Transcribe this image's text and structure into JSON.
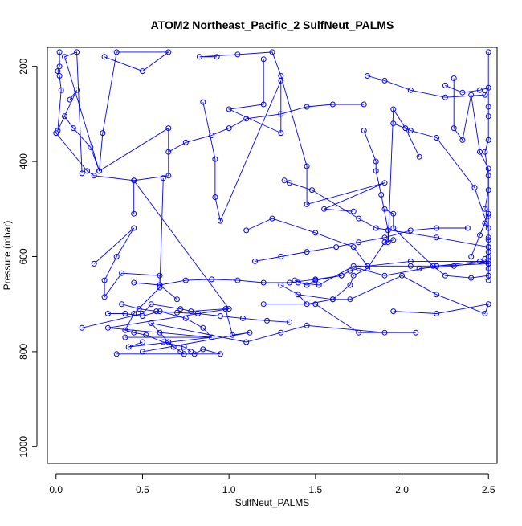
{
  "chart_data": {
    "type": "line",
    "title": "ATOM2 Northeast_Pacific_2 SulfNeut_PALMS",
    "xlabel": "SulfNeut_PALMS",
    "ylabel": "Pressure (mbar)",
    "xlim": [
      -0.05,
      2.55
    ],
    "ylim": [
      1035,
      160
    ],
    "y_reversed": true,
    "x_ticks": [
      0.0,
      0.5,
      1.0,
      1.5,
      2.0,
      2.5
    ],
    "x_tick_labels": [
      "0.0",
      "0.5",
      "1.0",
      "1.5",
      "2.0",
      "2.5"
    ],
    "y_ticks": [
      200,
      400,
      600,
      800,
      1000
    ],
    "y_tick_labels": [
      "200",
      "400",
      "600",
      "800",
      "1000"
    ],
    "grid": false,
    "legend": "none",
    "marker": "open-circle",
    "color": "#0000ff",
    "series": [
      {
        "points": [
          [
            0.02,
            170
          ],
          [
            0.02,
            200
          ],
          [
            0.01,
            210
          ],
          [
            0.02,
            220
          ],
          [
            0.03,
            250
          ],
          [
            0.01,
            335
          ],
          [
            0.12,
            250
          ],
          [
            0.08,
            270
          ]
        ]
      },
      {
        "points": [
          [
            0.05,
            305
          ],
          [
            0.1,
            330
          ],
          [
            0.2,
            370
          ],
          [
            0.25,
            420
          ],
          [
            0.05,
            180
          ],
          [
            0.12,
            170
          ],
          [
            0.15,
            425
          ]
        ]
      },
      {
        "points": [
          [
            0.28,
            180
          ],
          [
            0.5,
            210
          ],
          [
            0.65,
            170
          ],
          [
            0.35,
            170
          ],
          [
            0.27,
            340
          ],
          [
            0.25,
            420
          ],
          [
            0.65,
            330
          ],
          [
            0.65,
            430
          ],
          [
            0.45,
            440
          ],
          [
            0.45,
            510
          ]
        ]
      },
      {
        "points": [
          [
            0.0,
            340
          ],
          [
            0.18,
            420
          ],
          [
            0.22,
            430
          ],
          [
            0.45,
            440
          ],
          [
            1.0,
            710
          ],
          [
            0.3,
            750
          ],
          [
            0.9,
            770
          ],
          [
            0.4,
            770
          ]
        ]
      },
      {
        "points": [
          [
            0.85,
            275
          ],
          [
            0.92,
            395
          ],
          [
            0.92,
            475
          ],
          [
            0.95,
            525
          ],
          [
            1.3,
            230
          ],
          [
            1.3,
            340
          ],
          [
            1.0,
            290
          ],
          [
            1.2,
            280
          ],
          [
            1.2,
            185
          ]
        ]
      },
      {
        "points": [
          [
            0.93,
            180
          ],
          [
            0.83,
            180
          ],
          [
            1.05,
            175
          ],
          [
            1.25,
            170
          ],
          [
            1.3,
            220
          ],
          [
            1.45,
            410
          ],
          [
            1.45,
            490
          ],
          [
            1.9,
            445
          ],
          [
            1.55,
            500
          ],
          [
            1.72,
            505
          ]
        ]
      },
      {
        "points": [
          [
            0.22,
            615
          ],
          [
            0.45,
            540
          ],
          [
            0.35,
            600
          ],
          [
            0.28,
            650
          ],
          [
            0.28,
            685
          ],
          [
            0.38,
            635
          ],
          [
            0.6,
            640
          ],
          [
            0.6,
            660
          ],
          [
            0.7,
            690
          ]
        ]
      },
      {
        "points": [
          [
            0.15,
            750
          ],
          [
            0.5,
            720
          ],
          [
            0.55,
            700
          ],
          [
            0.72,
            710
          ],
          [
            0.78,
            715
          ],
          [
            0.98,
            710
          ],
          [
            1.02,
            765
          ],
          [
            1.12,
            760
          ],
          [
            0.5,
            800
          ]
        ]
      },
      {
        "points": [
          [
            0.55,
            740
          ],
          [
            0.6,
            760
          ],
          [
            0.65,
            780
          ],
          [
            0.68,
            790
          ],
          [
            0.72,
            800
          ],
          [
            0.74,
            805
          ],
          [
            0.8,
            805
          ],
          [
            0.85,
            795
          ],
          [
            0.95,
            805
          ],
          [
            0.35,
            805
          ]
        ]
      },
      {
        "points": [
          [
            1.3,
            660
          ],
          [
            1.4,
            680
          ],
          [
            1.45,
            700
          ],
          [
            1.6,
            690
          ],
          [
            1.7,
            660
          ],
          [
            1.72,
            640
          ],
          [
            1.8,
            625
          ],
          [
            1.9,
            570
          ],
          [
            1.95,
            565
          ]
        ]
      },
      {
        "points": [
          [
            1.38,
            650
          ],
          [
            1.45,
            660
          ],
          [
            1.5,
            650
          ],
          [
            1.65,
            640
          ],
          [
            1.7,
            630
          ],
          [
            1.75,
            625
          ],
          [
            1.9,
            640
          ],
          [
            2.2,
            620
          ],
          [
            2.5,
            615
          ]
        ]
      },
      {
        "points": [
          [
            1.78,
            335
          ],
          [
            1.85,
            400
          ],
          [
            1.85,
            420
          ],
          [
            1.88,
            470
          ],
          [
            1.92,
            545
          ],
          [
            1.92,
            570
          ],
          [
            1.95,
            290
          ],
          [
            2.02,
            330
          ],
          [
            2.1,
            390
          ]
        ]
      },
      {
        "points": [
          [
            1.9,
            500
          ],
          [
            1.95,
            510
          ],
          [
            1.95,
            540
          ],
          [
            2.18,
            620
          ],
          [
            2.25,
            640
          ],
          [
            2.4,
            645
          ],
          [
            2.5,
            640
          ],
          [
            2.5,
            615
          ],
          [
            2.48,
            605
          ]
        ]
      },
      {
        "points": [
          [
            2.3,
            225
          ],
          [
            2.3,
            330
          ],
          [
            2.35,
            355
          ],
          [
            2.4,
            260
          ],
          [
            2.45,
            380
          ],
          [
            2.5,
            415
          ],
          [
            2.5,
            460
          ],
          [
            2.48,
            500
          ],
          [
            2.5,
            515
          ]
        ]
      },
      {
        "points": [
          [
            2.5,
            170
          ],
          [
            2.5,
            285
          ],
          [
            2.5,
            305
          ],
          [
            2.5,
            355
          ],
          [
            2.48,
            380
          ],
          [
            2.5,
            430
          ],
          [
            2.5,
            560
          ],
          [
            2.5,
            600
          ],
          [
            2.5,
            625
          ],
          [
            2.5,
            650
          ]
        ]
      },
      {
        "points": [
          [
            1.4,
            680
          ],
          [
            1.6,
            690
          ],
          [
            1.7,
            690
          ],
          [
            2.0,
            640
          ],
          [
            2.2,
            680
          ],
          [
            2.48,
            720
          ],
          [
            2.5,
            700
          ],
          [
            2.2,
            720
          ],
          [
            1.95,
            715
          ]
        ]
      },
      {
        "points": [
          [
            1.4,
            655
          ],
          [
            1.52,
            660
          ],
          [
            1.72,
            620
          ],
          [
            2.05,
            620
          ],
          [
            2.2,
            620
          ],
          [
            2.45,
            610
          ],
          [
            2.5,
            615
          ],
          [
            2.5,
            600
          ],
          [
            2.5,
            580
          ]
        ]
      },
      {
        "points": [
          [
            1.95,
            320
          ],
          [
            2.05,
            335
          ],
          [
            2.2,
            350
          ],
          [
            2.42,
            455
          ],
          [
            2.5,
            540
          ],
          [
            2.48,
            530
          ],
          [
            2.45,
            555
          ],
          [
            2.4,
            600
          ],
          [
            2.5,
            510
          ]
        ]
      },
      {
        "points": [
          [
            0.55,
            740
          ],
          [
            1.1,
            780
          ],
          [
            1.3,
            760
          ],
          [
            1.45,
            745
          ],
          [
            1.9,
            760
          ],
          [
            2.08,
            760
          ],
          [
            1.75,
            760
          ],
          [
            1.5,
            700
          ],
          [
            1.2,
            700
          ]
        ]
      },
      {
        "points": [
          [
            0.3,
            720
          ],
          [
            0.4,
            720
          ],
          [
            0.5,
            725
          ],
          [
            0.6,
            715
          ],
          [
            0.75,
            730
          ],
          [
            0.85,
            750
          ],
          [
            0.9,
            770
          ],
          [
            0.42,
            790
          ],
          [
            0.5,
            780
          ]
        ]
      },
      {
        "points": [
          [
            0.62,
            435
          ],
          [
            0.6,
            665
          ],
          [
            0.45,
            720
          ],
          [
            0.4,
            755
          ],
          [
            0.45,
            760
          ],
          [
            0.52,
            765
          ],
          [
            0.62,
            780
          ],
          [
            0.74,
            790
          ],
          [
            0.78,
            800
          ]
        ]
      },
      {
        "points": [
          [
            1.1,
            545
          ],
          [
            1.25,
            520
          ],
          [
            1.5,
            550
          ],
          [
            1.72,
            580
          ],
          [
            1.8,
            620
          ],
          [
            2.05,
            610
          ],
          [
            2.5,
            610
          ],
          [
            2.3,
            620
          ],
          [
            2.1,
            625
          ]
        ]
      },
      {
        "points": [
          [
            1.32,
            440
          ],
          [
            1.35,
            445
          ],
          [
            1.48,
            460
          ],
          [
            1.75,
            520
          ],
          [
            1.85,
            540
          ],
          [
            2.2,
            560
          ],
          [
            2.5,
            580
          ],
          [
            2.5,
            590
          ],
          [
            2.5,
            565
          ]
        ]
      },
      {
        "points": [
          [
            1.78,
            280
          ],
          [
            1.6,
            280
          ],
          [
            1.45,
            285
          ],
          [
            1.3,
            300
          ],
          [
            1.1,
            310
          ],
          [
            1.0,
            330
          ],
          [
            0.9,
            345
          ],
          [
            0.75,
            360
          ],
          [
            0.65,
            380
          ]
        ]
      },
      {
        "points": [
          [
            1.8,
            220
          ],
          [
            1.9,
            230
          ],
          [
            2.05,
            250
          ],
          [
            2.25,
            265
          ],
          [
            2.48,
            260
          ],
          [
            2.5,
            245
          ],
          [
            2.45,
            250
          ],
          [
            2.35,
            255
          ],
          [
            2.25,
            240
          ]
        ]
      },
      {
        "points": [
          [
            1.15,
            610
          ],
          [
            1.3,
            600
          ],
          [
            1.45,
            590
          ],
          [
            1.62,
            580
          ],
          [
            1.75,
            570
          ],
          [
            1.9,
            560
          ],
          [
            2.05,
            545
          ],
          [
            2.2,
            540
          ],
          [
            2.38,
            540
          ]
        ]
      },
      {
        "points": [
          [
            0.38,
            700
          ],
          [
            0.48,
            710
          ],
          [
            0.58,
            715
          ],
          [
            0.7,
            718
          ],
          [
            0.82,
            720
          ],
          [
            0.95,
            725
          ],
          [
            1.08,
            730
          ],
          [
            1.22,
            735
          ],
          [
            1.35,
            738
          ]
        ]
      },
      {
        "points": [
          [
            0.45,
            655
          ],
          [
            0.6,
            660
          ],
          [
            0.75,
            650
          ],
          [
            0.9,
            648
          ],
          [
            1.05,
            650
          ],
          [
            1.2,
            655
          ],
          [
            1.35,
            655
          ],
          [
            1.5,
            648
          ],
          [
            1.65,
            640
          ]
        ]
      }
    ]
  }
}
